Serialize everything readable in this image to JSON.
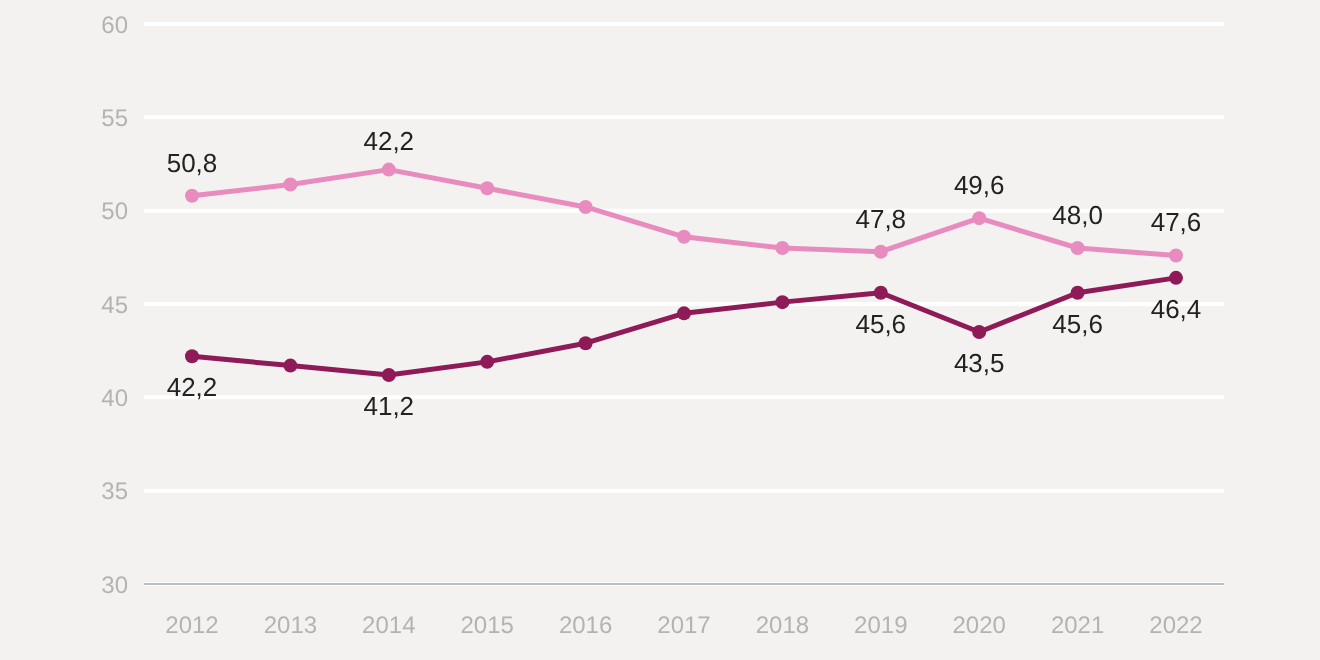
{
  "chart_data": {
    "type": "line",
    "categories": [
      "2012",
      "2013",
      "2014",
      "2015",
      "2016",
      "2017",
      "2018",
      "2019",
      "2020",
      "2021",
      "2022"
    ],
    "series": [
      {
        "color": "#e88bbf",
        "values": [
          50.8,
          51.4,
          52.2,
          51.2,
          50.2,
          48.6,
          48.0,
          47.8,
          49.6,
          48.0,
          47.6
        ],
        "value_labels": [
          "50,8",
          null,
          null,
          null,
          null,
          null,
          null,
          "47,8",
          "49,6",
          "48,0",
          "47,6"
        ]
      },
      {
        "color": "#8e1b57",
        "values": [
          42.2,
          41.7,
          41.2,
          41.9,
          42.9,
          44.5,
          45.1,
          45.6,
          43.5,
          45.6,
          46.4
        ],
        "value_labels": [
          "42,2",
          null,
          "41,2",
          null,
          null,
          null,
          null,
          "45,6",
          "43,5",
          "45,6",
          "46,4"
        ]
      }
    ],
    "annotations": [
      {
        "text": "42,2",
        "x": "2014",
        "y": 52.2
      }
    ],
    "ylim": [
      30,
      60
    ],
    "yticks": [
      30,
      35,
      40,
      45,
      50,
      55,
      60
    ],
    "grid": "y",
    "marker": "circle",
    "line_style": "solid",
    "legend": false
  }
}
